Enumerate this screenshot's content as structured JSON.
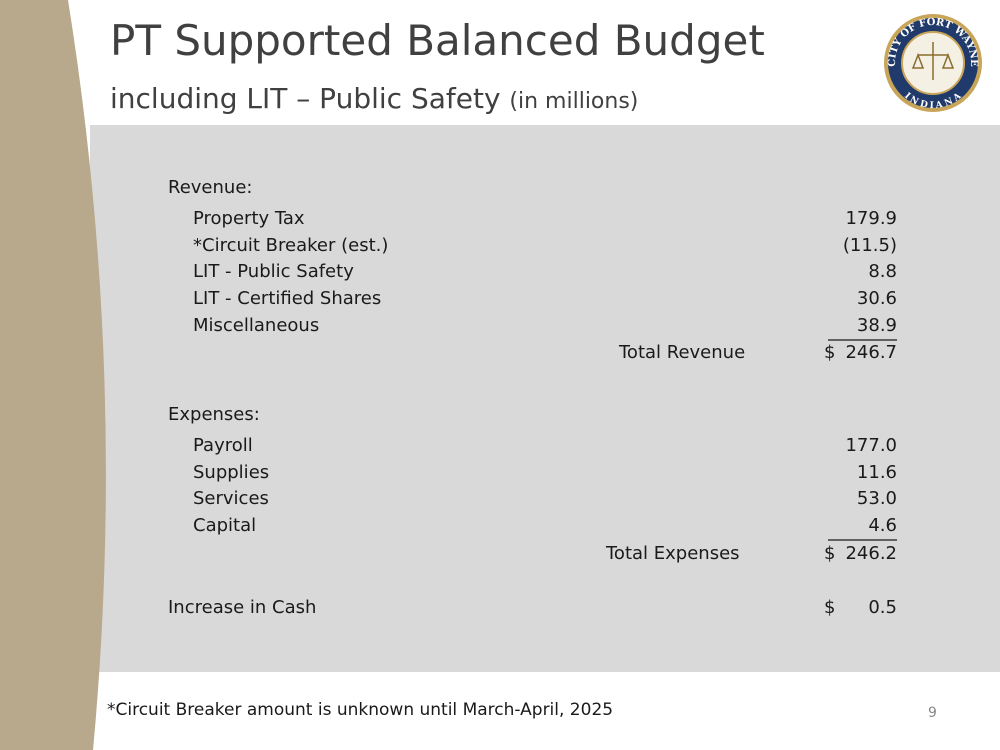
{
  "header": {
    "title": "PT Supported Balanced Budget",
    "subtitle": "including LIT – Public Safety",
    "subtitle_note": "(in millions)"
  },
  "logo": {
    "top": "CITY OF FORT WAYNE",
    "bottom": "INDIANA"
  },
  "revenue": {
    "heading": "Revenue:",
    "items": [
      [
        "Property Tax",
        "179.9"
      ],
      [
        "*Circuit Breaker (est.)",
        "(11.5)"
      ],
      [
        "LIT - Public Safety",
        "8.8"
      ],
      [
        "LIT - Certified Shares",
        "30.6"
      ],
      [
        "Miscellaneous",
        "38.9"
      ]
    ],
    "total": {
      "label": "Total Revenue",
      "currency": "$",
      "value": "246.7"
    }
  },
  "expenses": {
    "heading": "Expenses:",
    "items": [
      [
        "Payroll",
        "177.0"
      ],
      [
        "Supplies",
        "11.6"
      ],
      [
        "Services",
        "53.0"
      ],
      [
        "Capital",
        "4.6"
      ]
    ],
    "total": {
      "label": "Total Expenses",
      "currency": "$",
      "value": "246.2"
    }
  },
  "cash": {
    "label": "Increase in Cash",
    "currency": "$",
    "value": "0.5"
  },
  "footnote": "*Circuit Breaker amount is unknown until March-April, 2025",
  "page_number": "9"
}
